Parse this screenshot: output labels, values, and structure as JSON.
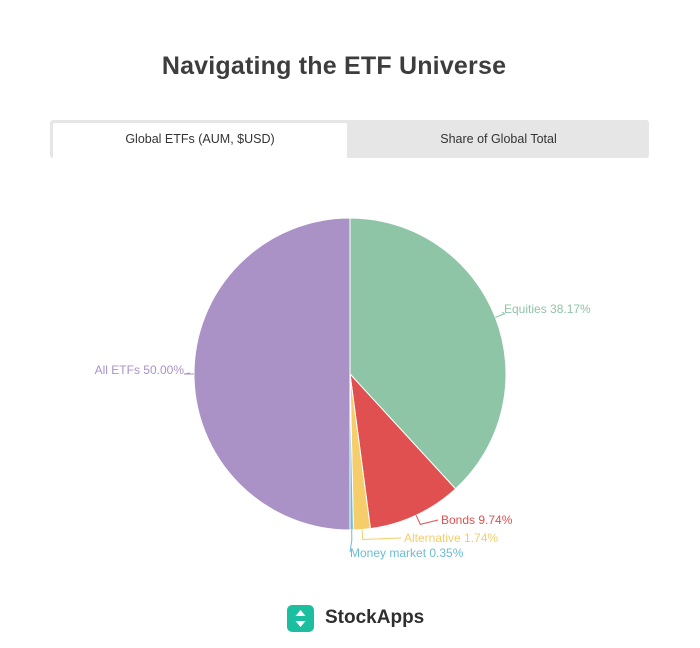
{
  "title": "Navigating the ETF Universe",
  "tabs": [
    {
      "label": "Global ETFs (AUM, $USD)",
      "active": true
    },
    {
      "label": "Share of Global Total",
      "active": false
    }
  ],
  "brand": "StockApps",
  "colors": {
    "equities": "#8fc5a7",
    "bonds": "#e05050",
    "alternative": "#f5cd6a",
    "money_market": "#6bbcd4",
    "all_etfs": "#aa92c6",
    "logo": "#1bbf9f"
  },
  "chart_data": {
    "type": "pie",
    "title": "Navigating the ETF Universe",
    "slices": [
      {
        "label": "Equities",
        "value": 38.17,
        "display": "Equities 38.17%",
        "color": "#8fc5a7"
      },
      {
        "label": "Bonds",
        "value": 9.74,
        "display": "Bonds 9.74%",
        "color": "#e05050"
      },
      {
        "label": "Alternative",
        "value": 1.74,
        "display": "Alternative 1.74%",
        "color": "#f5cd6a"
      },
      {
        "label": "Money market",
        "value": 0.35,
        "display": "Money market 0.35%",
        "color": "#6bbcd4"
      },
      {
        "label": "All ETFs",
        "value": 50.0,
        "display": "All ETFs 50.00%",
        "color": "#aa92c6"
      }
    ]
  }
}
